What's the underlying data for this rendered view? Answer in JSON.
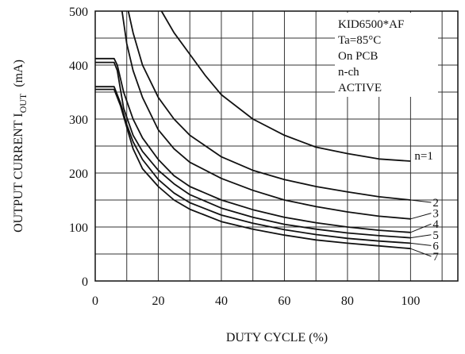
{
  "chart_data": {
    "type": "line",
    "title": "",
    "xlabel": "DUTY CYCLE  (%)",
    "ylabel": "OUTPUT CURRENT I",
    "ylabel_sub": "OUT",
    "ylabel_unit": "(mA)",
    "xlim": [
      0,
      115
    ],
    "ylim": [
      0,
      500
    ],
    "x_ticks": [
      0,
      20,
      40,
      60,
      80,
      100
    ],
    "y_ticks": [
      0,
      100,
      200,
      300,
      400,
      500
    ],
    "x_grid": [
      10,
      20,
      30,
      40,
      50,
      60,
      70,
      80,
      90,
      100,
      110
    ],
    "y_grid": [
      50,
      100,
      150,
      200,
      250,
      300,
      350,
      400,
      450
    ],
    "grid": true,
    "annotations": [
      "KID6500*AF",
      "Ta=85°C",
      "On PCB",
      "n-ch",
      "ACTIVE"
    ],
    "series": [
      {
        "name": "n=1",
        "points": [
          [
            21,
            500
          ],
          [
            25,
            460
          ],
          [
            30,
            420
          ],
          [
            35,
            380
          ],
          [
            40,
            345
          ],
          [
            50,
            300
          ],
          [
            60,
            270
          ],
          [
            70,
            248
          ],
          [
            80,
            236
          ],
          [
            90,
            226
          ],
          [
            100,
            222
          ]
        ]
      },
      {
        "name": "2",
        "points": [
          [
            10.5,
            500
          ],
          [
            12,
            460
          ],
          [
            15,
            400
          ],
          [
            20,
            340
          ],
          [
            25,
            300
          ],
          [
            30,
            270
          ],
          [
            40,
            230
          ],
          [
            50,
            205
          ],
          [
            60,
            188
          ],
          [
            70,
            175
          ],
          [
            80,
            165
          ],
          [
            90,
            156
          ],
          [
            100,
            150
          ]
        ]
      },
      {
        "name": "3",
        "points": [
          [
            8.5,
            500
          ],
          [
            10,
            440
          ],
          [
            12,
            390
          ],
          [
            15,
            340
          ],
          [
            20,
            280
          ],
          [
            25,
            245
          ],
          [
            30,
            220
          ],
          [
            40,
            190
          ],
          [
            50,
            168
          ],
          [
            60,
            150
          ],
          [
            70,
            138
          ],
          [
            80,
            128
          ],
          [
            90,
            120
          ],
          [
            100,
            115
          ]
        ]
      },
      {
        "name": "4",
        "points": [
          [
            0,
            412
          ],
          [
            6,
            412
          ],
          [
            7,
            400
          ],
          [
            9,
            350
          ],
          [
            12,
            300
          ],
          [
            15,
            265
          ],
          [
            20,
            225
          ],
          [
            25,
            195
          ],
          [
            30,
            175
          ],
          [
            40,
            150
          ],
          [
            50,
            132
          ],
          [
            60,
            118
          ],
          [
            70,
            108
          ],
          [
            80,
            100
          ],
          [
            90,
            94
          ],
          [
            100,
            90
          ]
        ]
      },
      {
        "name": "5",
        "points": [
          [
            0,
            405
          ],
          [
            6,
            405
          ],
          [
            7,
            390
          ],
          [
            9,
            320
          ],
          [
            12,
            270
          ],
          [
            15,
            240
          ],
          [
            20,
            205
          ],
          [
            25,
            180
          ],
          [
            30,
            160
          ],
          [
            40,
            135
          ],
          [
            50,
            118
          ],
          [
            60,
            105
          ],
          [
            70,
            96
          ],
          [
            80,
            89
          ],
          [
            90,
            84
          ],
          [
            100,
            80
          ]
        ]
      },
      {
        "name": "6",
        "points": [
          [
            0,
            360
          ],
          [
            6,
            360
          ],
          [
            8,
            330
          ],
          [
            10,
            290
          ],
          [
            12,
            258
          ],
          [
            15,
            225
          ],
          [
            20,
            188
          ],
          [
            25,
            163
          ],
          [
            30,
            145
          ],
          [
            40,
            122
          ],
          [
            50,
            107
          ],
          [
            60,
            95
          ],
          [
            70,
            86
          ],
          [
            80,
            79
          ],
          [
            90,
            74
          ],
          [
            100,
            70
          ]
        ]
      },
      {
        "name": "7",
        "points": [
          [
            0,
            355
          ],
          [
            6,
            355
          ],
          [
            8,
            325
          ],
          [
            10,
            285
          ],
          [
            12,
            245
          ],
          [
            15,
            208
          ],
          [
            20,
            175
          ],
          [
            25,
            150
          ],
          [
            30,
            133
          ],
          [
            40,
            110
          ],
          [
            50,
            96
          ],
          [
            60,
            85
          ],
          [
            70,
            76
          ],
          [
            80,
            70
          ],
          [
            90,
            65
          ],
          [
            100,
            60
          ]
        ]
      }
    ],
    "series_label_order": [
      "n=1",
      "2",
      "3",
      "4",
      "5",
      "6",
      "7"
    ]
  }
}
